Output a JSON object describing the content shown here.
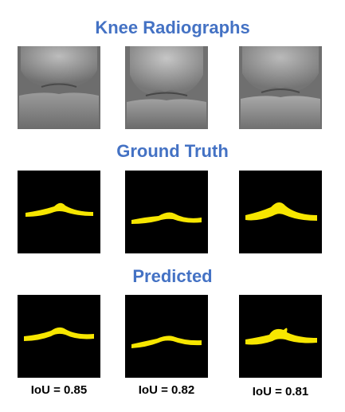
{
  "sections": {
    "radiographs": {
      "title": "Knee Radiographs"
    },
    "ground_truth": {
      "title": "Ground Truth"
    },
    "predicted": {
      "title": "Predicted"
    }
  },
  "iou_labels": [
    "IoU = 0.85",
    "IoU = 0.82",
    "IoU = 0.81"
  ],
  "colors": {
    "heading": "#4472c4",
    "mask_foreground": "#f7e600",
    "mask_background": "#000000"
  }
}
